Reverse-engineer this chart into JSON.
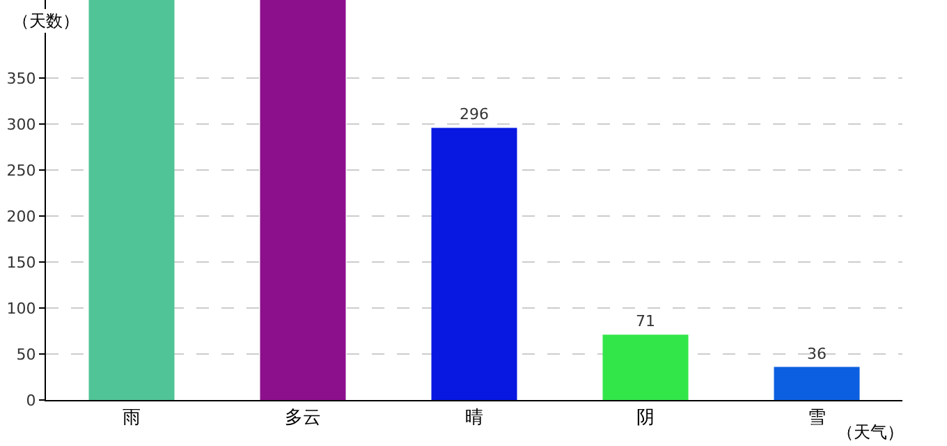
{
  "chart_data": {
    "type": "bar",
    "xlabel": "（天气）",
    "ylabel": "（天数）",
    "categories": [
      "雨",
      "多云",
      "晴",
      "阴",
      "雪"
    ],
    "values": [
      435,
      435,
      296,
      71,
      36
    ],
    "colors": [
      "#50c496",
      "#8c0f8c",
      "#0818e0",
      "#32e64a",
      "#0c5fe0"
    ],
    "value_labels": [
      null,
      null,
      "296",
      "71",
      "36"
    ],
    "ylim": [
      0,
      435
    ],
    "yticks": [
      0,
      50,
      100,
      150,
      200,
      250,
      300,
      350
    ],
    "grid": "y",
    "legend": false
  }
}
